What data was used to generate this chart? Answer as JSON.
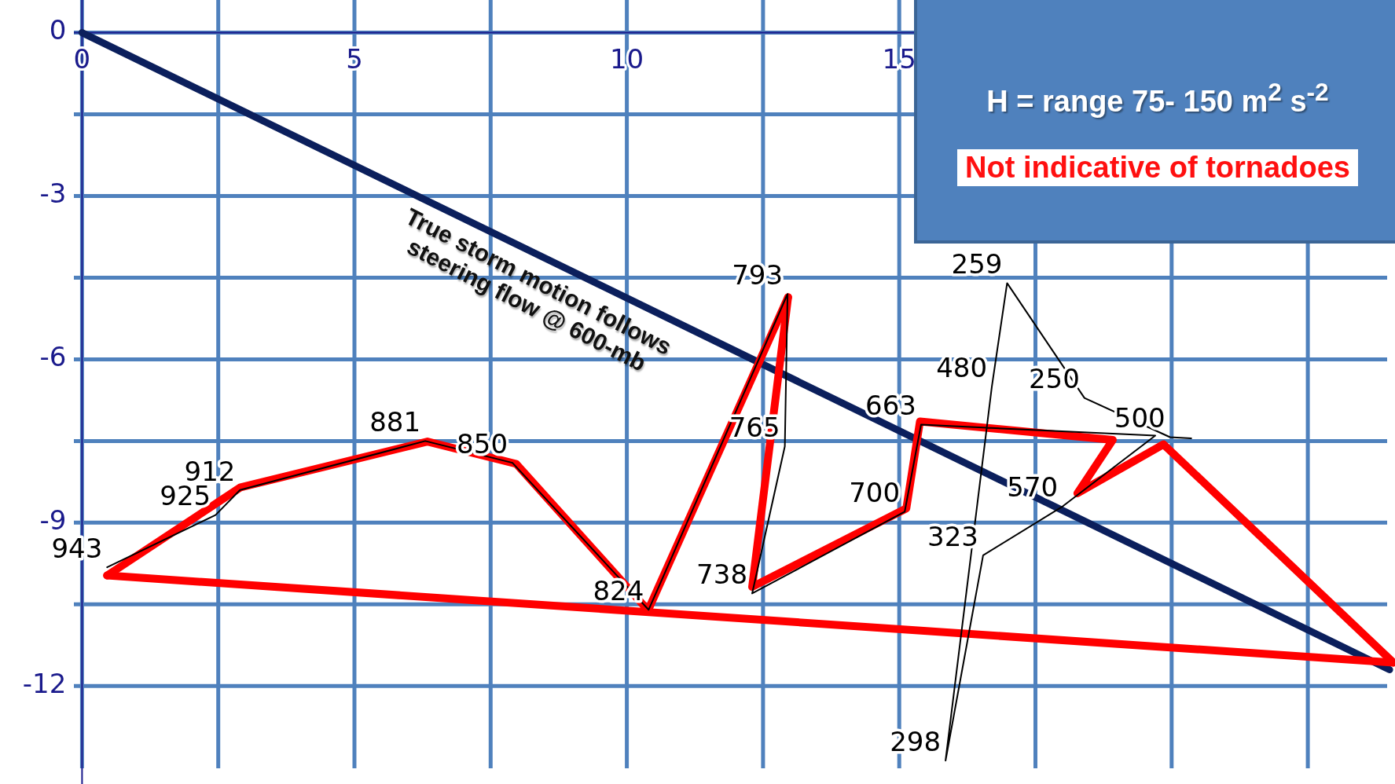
{
  "chart_data": {
    "type": "line",
    "xlim": [
      -0.15,
      24.1
    ],
    "ylim": [
      -13.8,
      0.6
    ],
    "xticks": [
      0,
      {
        "value": 2.5,
        "label": null
      },
      5,
      {
        "value": 7.5,
        "label": null
      },
      10,
      {
        "value": 12.5,
        "label": null
      },
      15,
      {
        "value": 17.5,
        "label": null
      },
      {
        "value": 20,
        "label": null
      },
      {
        "value": 22.5,
        "label": null
      }
    ],
    "yticks": [
      0,
      {
        "value": -1.5,
        "label": null
      },
      -3,
      {
        "value": -4.5,
        "label": null
      },
      -6,
      {
        "value": -7.5,
        "label": null
      },
      -9,
      {
        "value": -10.5,
        "label": null
      },
      -12
    ],
    "grid": true,
    "legend": false,
    "marker": "none",
    "line_style": "solid",
    "series": [
      {
        "color": "#000000",
        "x": [
          0.46,
          2.45,
          2.9,
          6.3,
          7.9,
          10.4,
          12.95,
          12.9,
          12.3,
          15.1,
          15.4,
          19.7,
          18.0,
          16.54,
          15.85,
          16.7,
          16.98,
          18.4,
          19.97,
          20.36
        ],
        "values": [
          -9.82,
          -8.86,
          -8.4,
          -7.5,
          -7.9,
          -10.6,
          -4.8,
          -7.6,
          -10.3,
          -8.8,
          -7.2,
          -7.4,
          -8.7,
          -9.6,
          -13.37,
          -6.5,
          -4.6,
          -6.71,
          -7.43,
          -7.45
        ]
      },
      {
        "color": "#ff0000",
        "x": [
          0.46,
          2.91,
          6.34,
          7.97,
          10.39,
          12.96
        ],
        "values": [
          -9.97,
          -8.35,
          -7.51,
          -7.92,
          -10.61,
          -4.86
        ]
      },
      {
        "color": "#ff0000",
        "x": [
          12.96,
          12.3,
          15.13,
          15.38,
          18.92,
          18.27,
          19.85,
          24.07
        ],
        "values": [
          -4.86,
          -10.18,
          -8.74,
          -7.14,
          -7.48,
          -8.46,
          -7.56,
          -11.57
        ]
      },
      {
        "color": "#ff0000",
        "x": [
          0.46,
          24.07
        ],
        "values": [
          -9.97,
          -11.57
        ]
      },
      {
        "color": "#0b1f5c",
        "x": [
          0,
          24
        ],
        "values": [
          0,
          -11.7
        ]
      }
    ],
    "annotations": [
      "True storm motion follows steering flow @ 600-mb",
      "H = range 75- 150 m$^{2}$ s$^{-2}$",
      "Not indicative of tornadoes",
      {
        "text": "943",
        "x": 0.46,
        "y": -9.82
      },
      {
        "text": "925",
        "x": 2.45,
        "y": -8.86
      },
      {
        "text": "912",
        "x": 2.9,
        "y": -8.4
      },
      {
        "text": "881",
        "x": 6.3,
        "y": -7.5
      },
      {
        "text": "850",
        "x": 7.9,
        "y": -7.9
      },
      {
        "text": "824",
        "x": 10.4,
        "y": -10.6
      },
      {
        "text": "793",
        "x": 12.95,
        "y": -4.8
      },
      {
        "text": "765",
        "x": 12.9,
        "y": -7.6
      },
      {
        "text": "738",
        "x": 12.3,
        "y": -10.3
      },
      {
        "text": "700",
        "x": 15.1,
        "y": -8.8
      },
      {
        "text": "663",
        "x": 15.4,
        "y": -7.2
      },
      {
        "text": "570",
        "x": 18.0,
        "y": -8.7
      },
      {
        "text": "323",
        "x": 16.54,
        "y": -9.6
      },
      {
        "text": "298",
        "x": 15.85,
        "y": -13.37
      },
      {
        "text": "480",
        "x": 16.7,
        "y": -6.5
      },
      {
        "text": "259",
        "x": 16.98,
        "y": -4.6
      },
      {
        "text": "250",
        "x": 18.4,
        "y": -6.71
      },
      {
        "text": "500",
        "x": 19.97,
        "y": -7.43
      }
    ]
  }
}
